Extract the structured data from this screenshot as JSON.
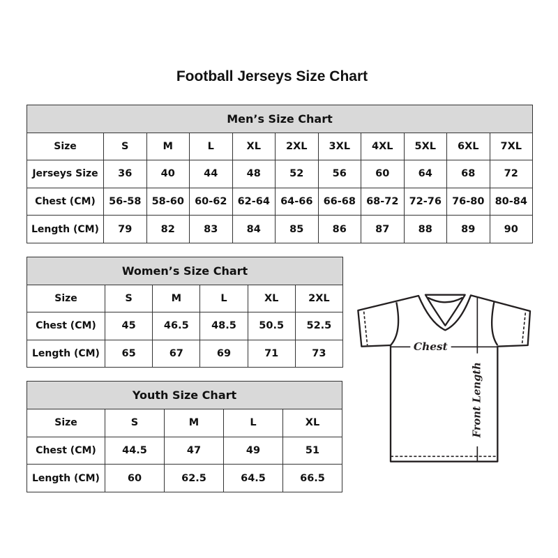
{
  "title": "Football Jerseys Size Chart",
  "men": {
    "heading": "Men’s Size Chart",
    "rows": [
      [
        "Size",
        "S",
        "M",
        "L",
        "XL",
        "2XL",
        "3XL",
        "4XL",
        "5XL",
        "6XL",
        "7XL"
      ],
      [
        "Jerseys Size",
        "36",
        "40",
        "44",
        "48",
        "52",
        "56",
        "60",
        "64",
        "68",
        "72"
      ],
      [
        "Chest (CM)",
        "56-58",
        "58-60",
        "60-62",
        "62-64",
        "64-66",
        "66-68",
        "68-72",
        "72-76",
        "76-80",
        "80-84"
      ],
      [
        "Length (CM)",
        "79",
        "82",
        "83",
        "84",
        "85",
        "86",
        "87",
        "88",
        "89",
        "90"
      ]
    ]
  },
  "women": {
    "heading": "Women’s Size Chart",
    "rows": [
      [
        "Size",
        "S",
        "M",
        "L",
        "XL",
        "2XL"
      ],
      [
        "Chest (CM)",
        "45",
        "46.5",
        "48.5",
        "50.5",
        "52.5"
      ],
      [
        "Length (CM)",
        "65",
        "67",
        "69",
        "71",
        "73"
      ]
    ]
  },
  "youth": {
    "heading": "Youth Size Chart",
    "rows": [
      [
        "Size",
        "S",
        "M",
        "L",
        "XL"
      ],
      [
        "Chest (CM)",
        "44.5",
        "47",
        "49",
        "51"
      ],
      [
        "Length (CM)",
        "60",
        "62.5",
        "64.5",
        "66.5"
      ]
    ]
  },
  "diagram": {
    "chest_label": "Chest",
    "length_label": "Front Length"
  },
  "colors": {
    "header_bg": "#d9d9d9",
    "border": "#333333",
    "line": "#231f20"
  }
}
